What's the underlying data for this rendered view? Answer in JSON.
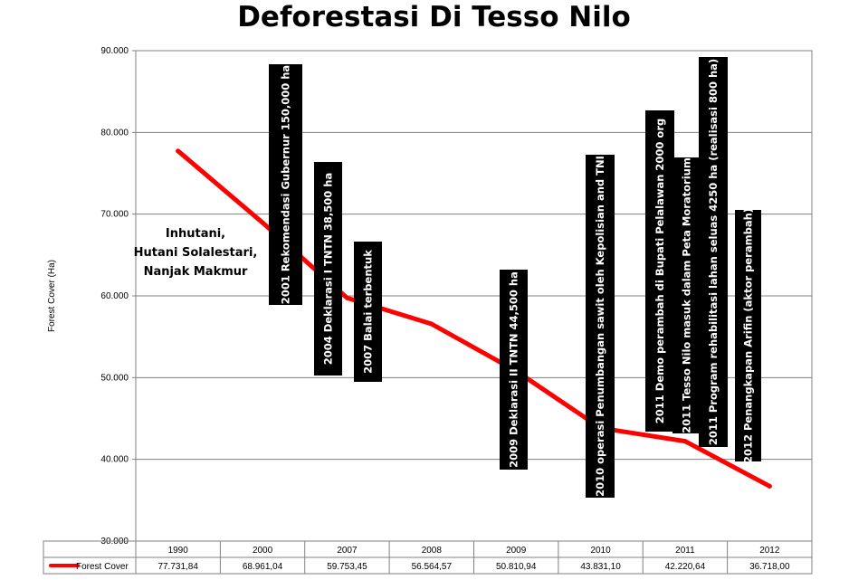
{
  "chart_data": {
    "type": "line",
    "title": "Deforestasi Di Tesso Nilo",
    "ylabel": "Forest Cover (Ha)",
    "ylim": [
      30000,
      90000
    ],
    "yticks": [
      30000,
      40000,
      50000,
      60000,
      70000,
      80000,
      90000
    ],
    "ytick_labels": [
      "30.000",
      "40.000",
      "50.000",
      "60.000",
      "70.000",
      "80.000",
      "90.000"
    ],
    "categories": [
      "1990",
      "2000",
      "2007",
      "2008",
      "2009",
      "2010",
      "2011",
      "2012"
    ],
    "series": [
      {
        "name": "Forest Cover",
        "color": "#ff0000",
        "values": [
          77731.84,
          68961.04,
          59753.45,
          56564.57,
          50810.94,
          43831.1,
          42220.64,
          36718.0
        ],
        "value_labels": [
          "77.731,84",
          "68.961,04",
          "59.753,45",
          "56.564,57",
          "50.810,94",
          "43.831,10",
          "42.220,64",
          "36.718,00"
        ]
      }
    ],
    "grid": "horizontal",
    "legend": "data-table",
    "annotations": [
      {
        "text": "Inhutani,\nHutani Solalestari,\nNanjak Makmur",
        "style": "plain"
      },
      {
        "text": "2001 Rekomendasi Gubernur 150,000 ha",
        "style": "black-box"
      },
      {
        "text": "2004 Deklarasi I TNTN 38,500 ha",
        "style": "black-box"
      },
      {
        "text": "2007 Balai terbentuk",
        "style": "black-box"
      },
      {
        "text": "2009 Deklarasi II TNTN 44,500 ha",
        "style": "black-box"
      },
      {
        "text": "2010 operasi  Penumbangan  sawit oleh Kepolisian and TNI",
        "style": "black-box"
      },
      {
        "text": "2011 Demo perambah di Bupati  Pelalawan 2000 org",
        "style": "black-box"
      },
      {
        "text": "2011 Tesso Nilo masuk dalam Peta Moratorium",
        "style": "black-box"
      },
      {
        "text": "2011 Program rehabilitasi  lahan seluas  4250 ha (realisasi 800 ha)",
        "style": "black-box"
      },
      {
        "text": "2012 Penangkapan Arifin (aktor perambah)",
        "style": "black-box"
      }
    ]
  }
}
